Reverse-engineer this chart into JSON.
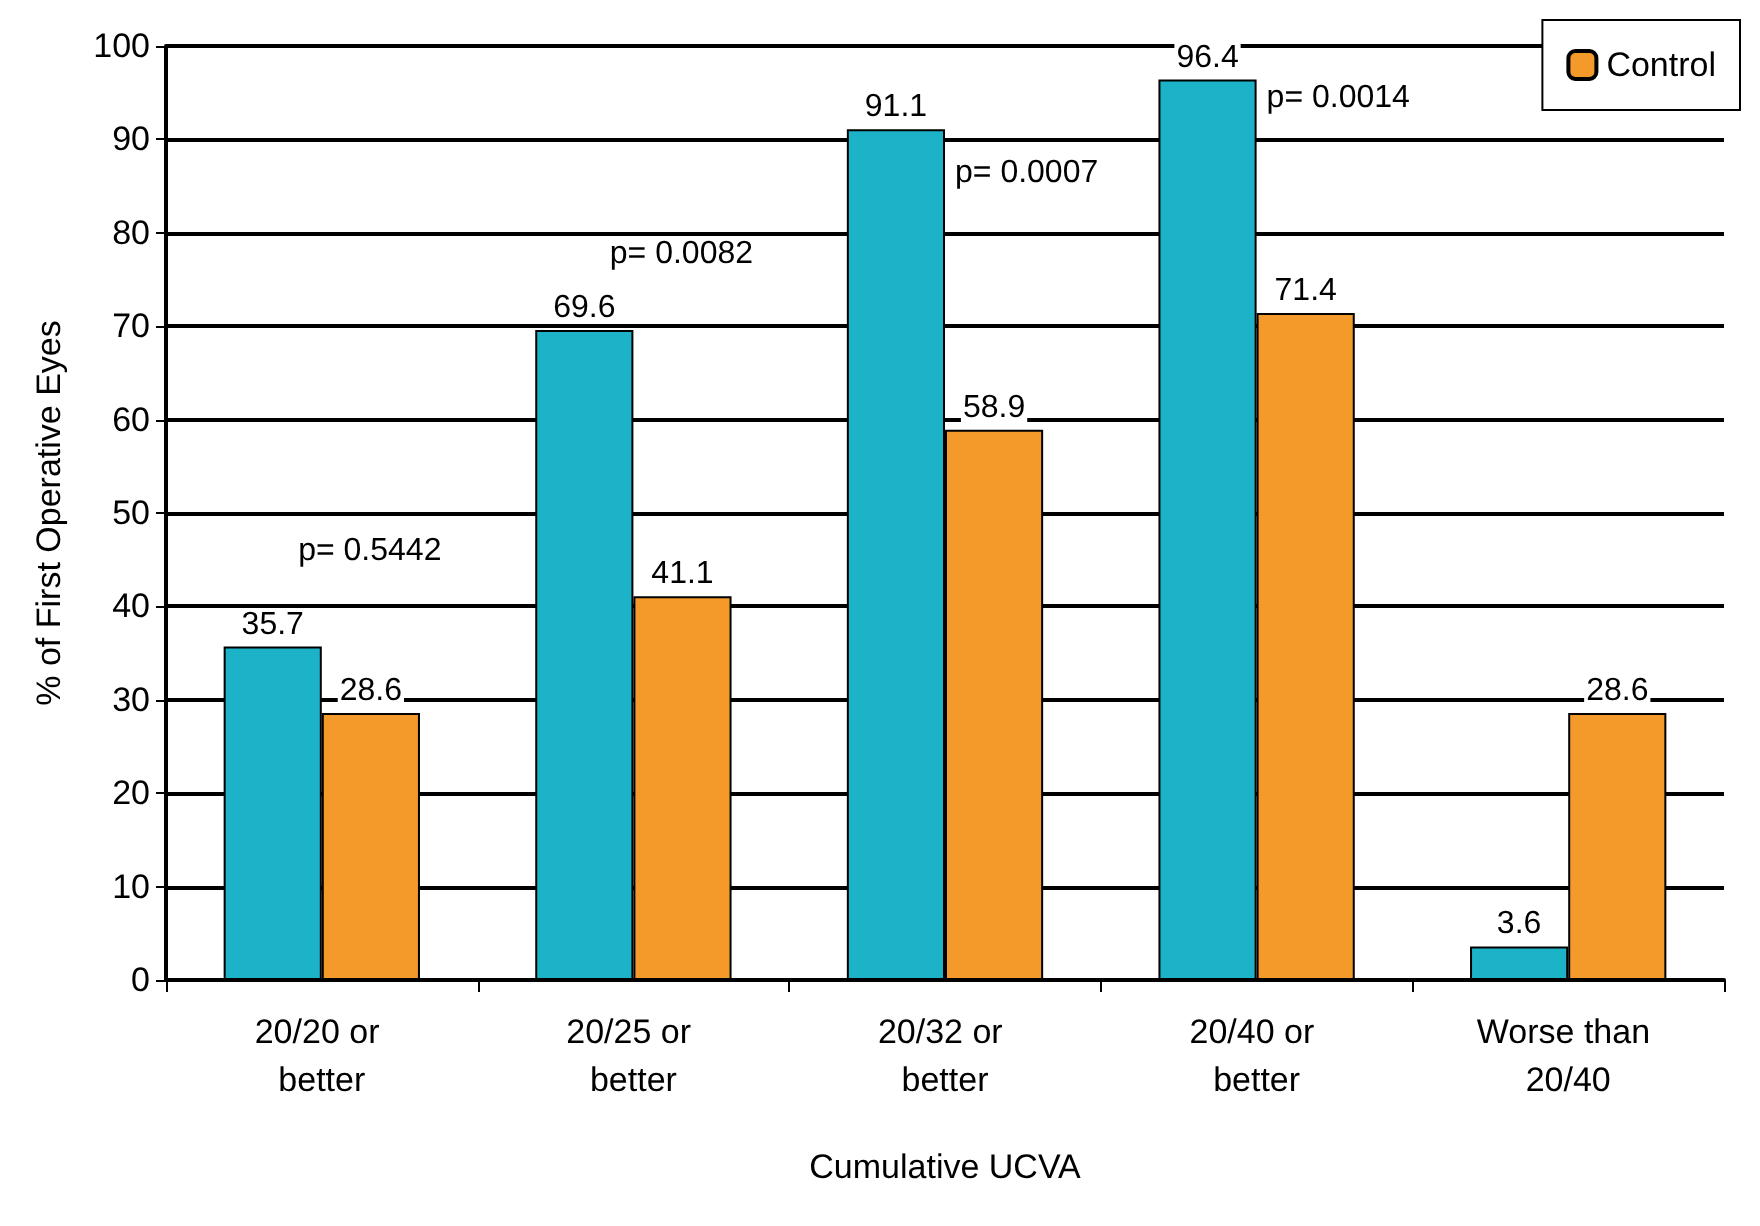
{
  "chart_data": {
    "type": "bar",
    "xlabel": "Cumulative UCVA",
    "ylabel": "% of First Operative Eyes",
    "categories": [
      "20/20 or better",
      "20/25 or better",
      "20/32 or better",
      "20/40 or better",
      "Worse than 20/40"
    ],
    "series": [
      {
        "color": "#1cb3c8",
        "values": [
          35.7,
          69.6,
          91.1,
          96.4,
          3.6
        ]
      },
      {
        "name": "Control",
        "color": "#f39a2b",
        "values": [
          28.6,
          41.1,
          58.9,
          71.4,
          28.6
        ]
      }
    ],
    "ylim": [
      0,
      100
    ],
    "yticks": [
      0,
      10,
      20,
      30,
      40,
      50,
      60,
      70,
      80,
      90,
      100
    ],
    "grid": "y",
    "legend": "top right",
    "data_labels": true,
    "annotations": [
      "p= 0.5442",
      "p= 0.0082",
      "p= 0.0007",
      "p= 0.0014"
    ]
  }
}
